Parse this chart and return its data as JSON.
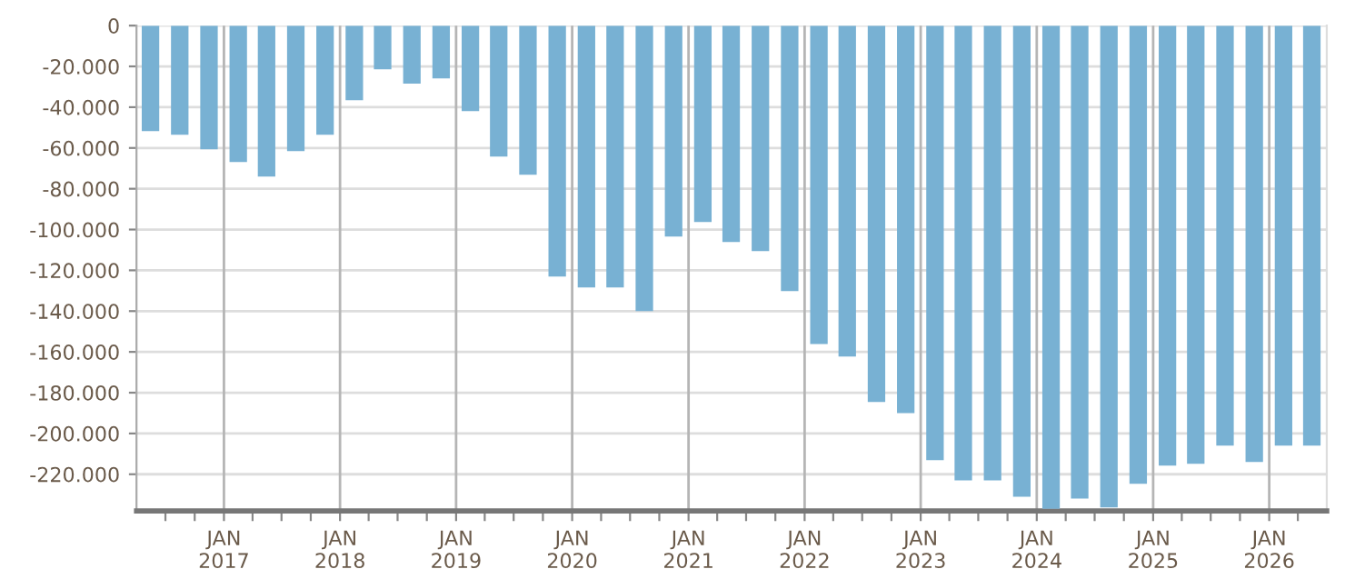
{
  "chart_data": {
    "type": "bar",
    "x": [
      "2016-05-15",
      "2016-08-15",
      "2016-11-15",
      "2017-02-15",
      "2017-05-15",
      "2017-08-15",
      "2017-11-15",
      "2018-02-15",
      "2018-05-15",
      "2018-08-15",
      "2018-11-15",
      "2019-02-15",
      "2019-05-15",
      "2019-08-15",
      "2019-11-15",
      "2020-02-15",
      "2020-05-15",
      "2020-08-15",
      "2020-11-15",
      "2021-02-15",
      "2021-05-15",
      "2021-08-15",
      "2021-11-15",
      "2022-02-15",
      "2022-05-15",
      "2022-08-15",
      "2022-11-15",
      "2023-02-15",
      "2023-05-15",
      "2023-08-15",
      "2023-11-15",
      "2024-02-15",
      "2024-05-15",
      "2024-08-15",
      "2024-11-15",
      "2025-02-15",
      "2025-05-15",
      "2025-08-15",
      "2025-11-15",
      "2026-02-15",
      "2026-05-15"
    ],
    "values": [
      -51700,
      -53500,
      -60600,
      -66900,
      -74000,
      -61500,
      -53500,
      -36600,
      -21400,
      -28500,
      -25900,
      -41900,
      -64200,
      -73100,
      -123100,
      -128400,
      -128400,
      -140000,
      -103400,
      -96300,
      -106100,
      -110600,
      -130200,
      -156100,
      -162300,
      -184600,
      -190000,
      -213100,
      -223000,
      -223000,
      -231000,
      -236900,
      -231900,
      -236300,
      -224700,
      -215800,
      -214900,
      -206000,
      -214000,
      -206000,
      -206000
    ],
    "color": "#78b1d3",
    "xlim": [
      "2016-04-01",
      "2026-07-01"
    ],
    "xticks": [
      {
        "value": "2016-07-01",
        "label": null
      },
      {
        "value": "2016-10-01",
        "label": null
      },
      {
        "value": "2017-01-01",
        "label": "JAN\n2017"
      },
      {
        "value": "2017-04-01",
        "label": null
      },
      {
        "value": "2017-07-01",
        "label": null
      },
      {
        "value": "2017-10-01",
        "label": null
      },
      {
        "value": "2018-01-01",
        "label": "JAN\n2018"
      },
      {
        "value": "2018-04-01",
        "label": null
      },
      {
        "value": "2018-07-01",
        "label": null
      },
      {
        "value": "2018-10-01",
        "label": null
      },
      {
        "value": "2019-01-01",
        "label": "JAN\n2019"
      },
      {
        "value": "2019-04-01",
        "label": null
      },
      {
        "value": "2019-07-01",
        "label": null
      },
      {
        "value": "2019-10-01",
        "label": null
      },
      {
        "value": "2020-01-01",
        "label": "JAN\n2020"
      },
      {
        "value": "2020-04-01",
        "label": null
      },
      {
        "value": "2020-07-01",
        "label": null
      },
      {
        "value": "2020-10-01",
        "label": null
      },
      {
        "value": "2021-01-01",
        "label": "JAN\n2021"
      },
      {
        "value": "2021-04-01",
        "label": null
      },
      {
        "value": "2021-07-01",
        "label": null
      },
      {
        "value": "2021-10-01",
        "label": null
      },
      {
        "value": "2022-01-01",
        "label": "JAN\n2022"
      },
      {
        "value": "2022-04-01",
        "label": null
      },
      {
        "value": "2022-07-01",
        "label": null
      },
      {
        "value": "2022-10-01",
        "label": null
      },
      {
        "value": "2023-01-01",
        "label": "JAN\n2023"
      },
      {
        "value": "2023-04-01",
        "label": null
      },
      {
        "value": "2023-07-01",
        "label": null
      },
      {
        "value": "2023-10-01",
        "label": null
      },
      {
        "value": "2024-01-01",
        "label": "JAN\n2024"
      },
      {
        "value": "2024-04-01",
        "label": null
      },
      {
        "value": "2024-07-01",
        "label": null
      },
      {
        "value": "2024-10-01",
        "label": null
      },
      {
        "value": "2025-01-01",
        "label": "JAN\n2025"
      },
      {
        "value": "2025-04-01",
        "label": null
      },
      {
        "value": "2025-07-01",
        "label": null
      },
      {
        "value": "2025-10-01",
        "label": null
      },
      {
        "value": "2026-01-01",
        "label": "JAN\n2026"
      },
      {
        "value": "2026-04-01",
        "label": null
      }
    ],
    "ylim": [
      -238000,
      0
    ],
    "yticks": [
      0,
      {
        "value": -20000,
        "label": "-20.000"
      },
      {
        "value": -40000,
        "label": "-40.000"
      },
      {
        "value": -60000,
        "label": "-60.000"
      },
      {
        "value": -80000,
        "label": "-80.000"
      },
      {
        "value": -100000,
        "label": "-100.000"
      },
      {
        "value": -120000,
        "label": "-120.000"
      },
      {
        "value": -140000,
        "label": "-140.000"
      },
      {
        "value": -160000,
        "label": "-160.000"
      },
      {
        "value": -180000,
        "label": "-180.000"
      },
      {
        "value": -200000,
        "label": "-200.000"
      },
      {
        "value": -220000,
        "label": "-220.000"
      }
    ],
    "grid": true
  }
}
